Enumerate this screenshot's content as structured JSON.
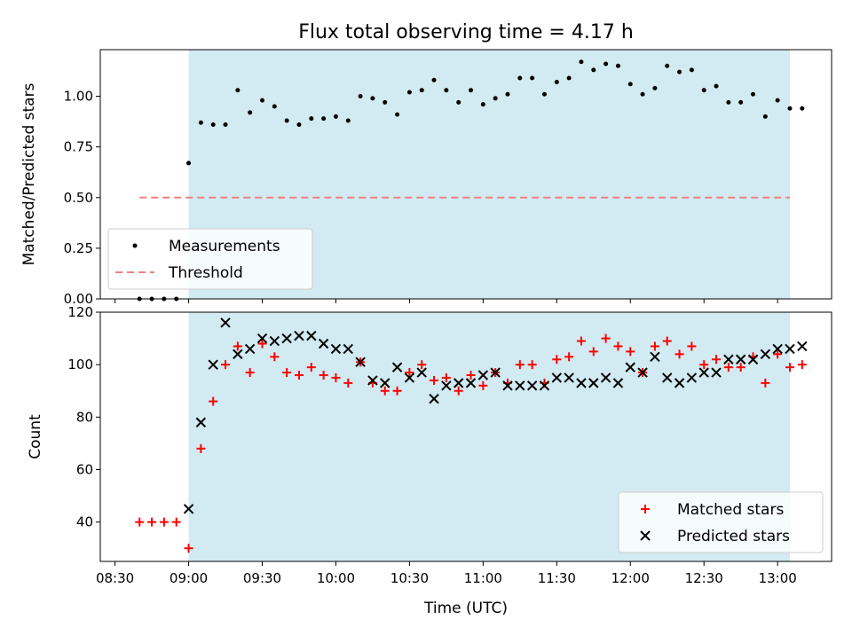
{
  "title": "Flux total observing time = 4.17 h",
  "colors": {
    "shade": "#add8e6",
    "measurement": "#000000",
    "threshold": "#f08080",
    "matched": "#ff0000",
    "predicted": "#000000"
  },
  "chart_data": [
    {
      "type": "scatter",
      "panel": "top",
      "ylabel": "Matched/Predicted stars",
      "ylim": [
        0,
        1.23
      ],
      "yticks": [
        "0.00",
        "0.25",
        "0.50",
        "0.75",
        "1.00"
      ],
      "shaded_interval": [
        "09:00",
        "13:05"
      ],
      "series": [
        {
          "name": "Measurements",
          "marker": "dot",
          "points": [
            [
              "08:40",
              0.0
            ],
            [
              "08:45",
              0.0
            ],
            [
              "08:50",
              0.0
            ],
            [
              "08:55",
              0.0
            ],
            [
              "09:00",
              0.67
            ],
            [
              "09:05",
              0.87
            ],
            [
              "09:10",
              0.86
            ],
            [
              "09:15",
              0.86
            ],
            [
              "09:20",
              1.03
            ],
            [
              "09:25",
              0.92
            ],
            [
              "09:30",
              0.98
            ],
            [
              "09:35",
              0.95
            ],
            [
              "09:40",
              0.88
            ],
            [
              "09:45",
              0.86
            ],
            [
              "09:50",
              0.89
            ],
            [
              "09:55",
              0.89
            ],
            [
              "10:00",
              0.9
            ],
            [
              "10:05",
              0.88
            ],
            [
              "10:10",
              1.0
            ],
            [
              "10:15",
              0.99
            ],
            [
              "10:20",
              0.97
            ],
            [
              "10:25",
              0.91
            ],
            [
              "10:30",
              1.02
            ],
            [
              "10:35",
              1.03
            ],
            [
              "10:40",
              1.08
            ],
            [
              "10:45",
              1.03
            ],
            [
              "10:50",
              0.97
            ],
            [
              "10:55",
              1.03
            ],
            [
              "11:00",
              0.96
            ],
            [
              "11:05",
              0.99
            ],
            [
              "11:10",
              1.01
            ],
            [
              "11:15",
              1.09
            ],
            [
              "11:20",
              1.09
            ],
            [
              "11:25",
              1.01
            ],
            [
              "11:30",
              1.07
            ],
            [
              "11:35",
              1.09
            ],
            [
              "11:40",
              1.17
            ],
            [
              "11:45",
              1.13
            ],
            [
              "11:50",
              1.16
            ],
            [
              "11:55",
              1.15
            ],
            [
              "12:00",
              1.06
            ],
            [
              "12:05",
              1.01
            ],
            [
              "12:10",
              1.04
            ],
            [
              "12:15",
              1.15
            ],
            [
              "12:20",
              1.12
            ],
            [
              "12:25",
              1.13
            ],
            [
              "12:30",
              1.03
            ],
            [
              "12:35",
              1.05
            ],
            [
              "12:40",
              0.97
            ],
            [
              "12:45",
              0.97
            ],
            [
              "12:50",
              1.01
            ],
            [
              "12:55",
              0.9
            ],
            [
              "13:00",
              0.98
            ],
            [
              "13:05",
              0.94
            ],
            [
              "13:10",
              0.94
            ]
          ]
        },
        {
          "name": "Threshold",
          "marker": "dashed-line",
          "points": [
            [
              "08:40",
              0.5
            ],
            [
              "13:05",
              0.5
            ]
          ]
        }
      ],
      "legend": "lower-left"
    },
    {
      "type": "scatter",
      "panel": "bottom",
      "xlabel": "Time (UTC)",
      "ylabel": "Count",
      "ylim": [
        25,
        120
      ],
      "yticks": [
        "40",
        "60",
        "80",
        "100",
        "120"
      ],
      "xticks": [
        "08:30",
        "09:00",
        "09:30",
        "10:00",
        "10:30",
        "11:00",
        "11:30",
        "12:00",
        "12:30",
        "13:00"
      ],
      "shaded_interval": [
        "09:00",
        "13:05"
      ],
      "series": [
        {
          "name": "Matched stars",
          "marker": "plus",
          "points": [
            [
              "08:40",
              40
            ],
            [
              "08:45",
              40
            ],
            [
              "08:50",
              40
            ],
            [
              "08:55",
              40
            ],
            [
              "09:00",
              30
            ],
            [
              "09:05",
              68
            ],
            [
              "09:10",
              86
            ],
            [
              "09:15",
              100
            ],
            [
              "09:20",
              107
            ],
            [
              "09:25",
              97
            ],
            [
              "09:30",
              108
            ],
            [
              "09:35",
              103
            ],
            [
              "09:40",
              97
            ],
            [
              "09:45",
              96
            ],
            [
              "09:50",
              99
            ],
            [
              "09:55",
              96
            ],
            [
              "10:00",
              95
            ],
            [
              "10:05",
              93
            ],
            [
              "10:10",
              101
            ],
            [
              "10:15",
              93
            ],
            [
              "10:20",
              90
            ],
            [
              "10:25",
              90
            ],
            [
              "10:30",
              97
            ],
            [
              "10:35",
              100
            ],
            [
              "10:40",
              94
            ],
            [
              "10:45",
              95
            ],
            [
              "10:50",
              90
            ],
            [
              "10:55",
              96
            ],
            [
              "11:00",
              92
            ],
            [
              "11:05",
              97
            ],
            [
              "11:10",
              93
            ],
            [
              "11:15",
              100
            ],
            [
              "11:20",
              100
            ],
            [
              "11:25",
              93
            ],
            [
              "11:30",
              102
            ],
            [
              "11:35",
              103
            ],
            [
              "11:40",
              109
            ],
            [
              "11:45",
              105
            ],
            [
              "11:50",
              110
            ],
            [
              "11:55",
              107
            ],
            [
              "12:00",
              105
            ],
            [
              "12:05",
              97
            ],
            [
              "12:10",
              107
            ],
            [
              "12:15",
              109
            ],
            [
              "12:20",
              104
            ],
            [
              "12:25",
              107
            ],
            [
              "12:30",
              100
            ],
            [
              "12:35",
              102
            ],
            [
              "12:40",
              99
            ],
            [
              "12:45",
              99
            ],
            [
              "12:50",
              103
            ],
            [
              "12:55",
              93
            ],
            [
              "13:00",
              104
            ],
            [
              "13:05",
              99
            ],
            [
              "13:10",
              100
            ]
          ]
        },
        {
          "name": "Predicted stars",
          "marker": "x",
          "points": [
            [
              "09:00",
              45
            ],
            [
              "09:05",
              78
            ],
            [
              "09:10",
              100
            ],
            [
              "09:15",
              116
            ],
            [
              "09:20",
              104
            ],
            [
              "09:25",
              106
            ],
            [
              "09:30",
              110
            ],
            [
              "09:35",
              109
            ],
            [
              "09:40",
              110
            ],
            [
              "09:45",
              111
            ],
            [
              "09:50",
              111
            ],
            [
              "09:55",
              108
            ],
            [
              "10:00",
              106
            ],
            [
              "10:05",
              106
            ],
            [
              "10:10",
              101
            ],
            [
              "10:15",
              94
            ],
            [
              "10:20",
              93
            ],
            [
              "10:25",
              99
            ],
            [
              "10:30",
              95
            ],
            [
              "10:35",
              97
            ],
            [
              "10:40",
              87
            ],
            [
              "10:45",
              92
            ],
            [
              "10:50",
              93
            ],
            [
              "10:55",
              93
            ],
            [
              "11:00",
              96
            ],
            [
              "11:05",
              97
            ],
            [
              "11:10",
              92
            ],
            [
              "11:15",
              92
            ],
            [
              "11:20",
              92
            ],
            [
              "11:25",
              92
            ],
            [
              "11:30",
              95
            ],
            [
              "11:35",
              95
            ],
            [
              "11:40",
              93
            ],
            [
              "11:45",
              93
            ],
            [
              "11:50",
              95
            ],
            [
              "11:55",
              93
            ],
            [
              "12:00",
              99
            ],
            [
              "12:05",
              97
            ],
            [
              "12:10",
              103
            ],
            [
              "12:15",
              95
            ],
            [
              "12:20",
              93
            ],
            [
              "12:25",
              95
            ],
            [
              "12:30",
              97
            ],
            [
              "12:35",
              97
            ],
            [
              "12:40",
              102
            ],
            [
              "12:45",
              102
            ],
            [
              "12:50",
              102
            ],
            [
              "12:55",
              104
            ],
            [
              "13:00",
              106
            ],
            [
              "13:05",
              106
            ],
            [
              "13:10",
              107
            ]
          ]
        }
      ],
      "legend": "lower-right"
    }
  ]
}
